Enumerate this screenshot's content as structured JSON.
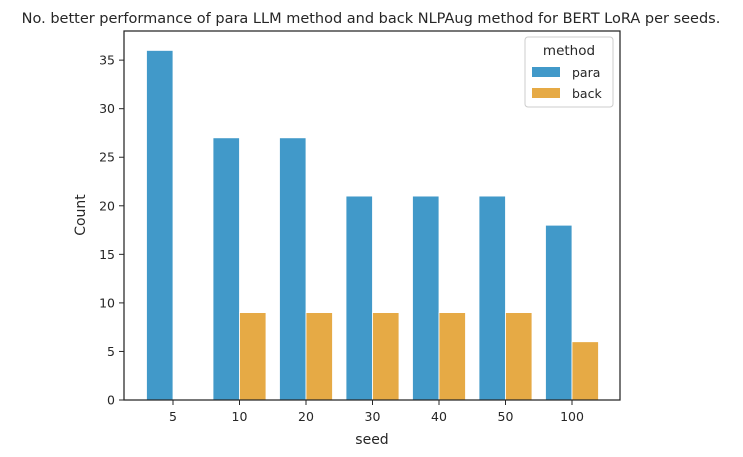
{
  "chart_data": {
    "type": "bar",
    "title": "No. better performance of para LLM method and back NLPAug method for BERT LoRA per seeds.",
    "xlabel": "seed",
    "ylabel": "Count",
    "categories": [
      "5",
      "10",
      "20",
      "30",
      "40",
      "50",
      "100"
    ],
    "series": [
      {
        "name": "para",
        "values": [
          36,
          27,
          27,
          21,
          21,
          21,
          18
        ],
        "color": "#4199C9"
      },
      {
        "name": "back",
        "values": [
          0,
          9,
          9,
          9,
          9,
          9,
          6
        ],
        "color": "#E6AA45"
      }
    ],
    "ylim": [
      0,
      38
    ],
    "yticks": [
      0,
      5,
      10,
      15,
      20,
      25,
      30,
      35
    ],
    "grid": false,
    "legend": {
      "title": "method",
      "placement": "top-right"
    }
  }
}
